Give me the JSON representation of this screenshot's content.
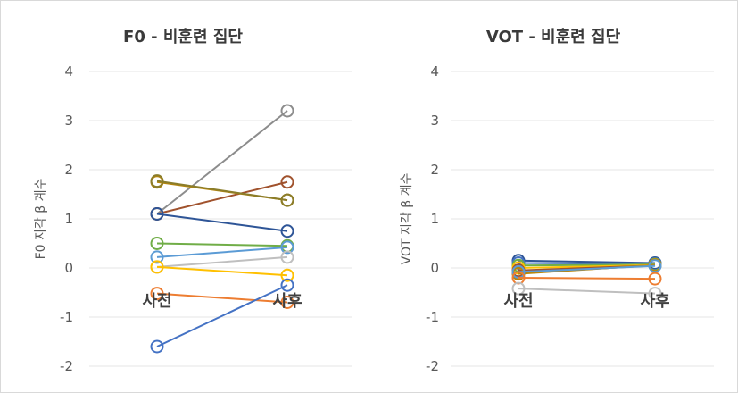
{
  "chart_data": [
    {
      "type": "line",
      "title": "F0 - 비훈련 집단",
      "ylabel": "F0 지각 β 계수",
      "xlabel": "",
      "categories": [
        "사전",
        "사후"
      ],
      "ylim": [
        -2,
        4
      ],
      "yticks": [
        4,
        3,
        2,
        1,
        0,
        -1,
        -2
      ],
      "grid": true,
      "series": [
        {
          "values": [
            1.1,
            3.2
          ],
          "color": "#8c8c8c"
        },
        {
          "values": [
            1.1,
            1.75
          ],
          "color": "#a0522d"
        },
        {
          "values": [
            1.75,
            1.38
          ],
          "color": "#b8860b"
        },
        {
          "values": [
            1.77,
            1.38
          ],
          "color": "#8b7d2a"
        },
        {
          "values": [
            1.1,
            0.75
          ],
          "color": "#2e5597"
        },
        {
          "values": [
            0.5,
            0.45
          ],
          "color": "#70ad47"
        },
        {
          "values": [
            0.22,
            0.42
          ],
          "color": "#5b9bd5"
        },
        {
          "values": [
            0.02,
            0.22
          ],
          "color": "#bfbfbf"
        },
        {
          "values": [
            0.02,
            -0.15
          ],
          "color": "#ffc000"
        },
        {
          "values": [
            -0.52,
            -0.7
          ],
          "color": "#ed7d31"
        },
        {
          "values": [
            -1.6,
            -0.35
          ],
          "color": "#4472c4"
        }
      ]
    },
    {
      "type": "line",
      "title": "VOT - 비훈련 집단",
      "ylabel": "VOT 지각 β 계수",
      "xlabel": "",
      "categories": [
        "사전",
        "사후"
      ],
      "ylim": [
        -2,
        4
      ],
      "yticks": [
        4,
        3,
        2,
        1,
        0,
        -1,
        -2
      ],
      "grid": true,
      "series": [
        {
          "values": [
            0.15,
            0.1
          ],
          "color": "#2e5597"
        },
        {
          "values": [
            0.1,
            0.08
          ],
          "color": "#4472c4"
        },
        {
          "values": [
            0.05,
            0.07
          ],
          "color": "#70ad47"
        },
        {
          "values": [
            0.0,
            0.06
          ],
          "color": "#ffc000"
        },
        {
          "values": [
            -0.05,
            0.05
          ],
          "color": "#a0522d"
        },
        {
          "values": [
            -0.1,
            0.05
          ],
          "color": "#8b7d2a"
        },
        {
          "values": [
            -0.12,
            0.06
          ],
          "color": "#b8860b"
        },
        {
          "values": [
            -0.08,
            0.04
          ],
          "color": "#5b9bd5"
        },
        {
          "values": [
            -0.2,
            -0.22
          ],
          "color": "#ed7d31"
        },
        {
          "values": [
            -0.42,
            -0.52
          ],
          "color": "#bfbfbf"
        }
      ]
    }
  ]
}
